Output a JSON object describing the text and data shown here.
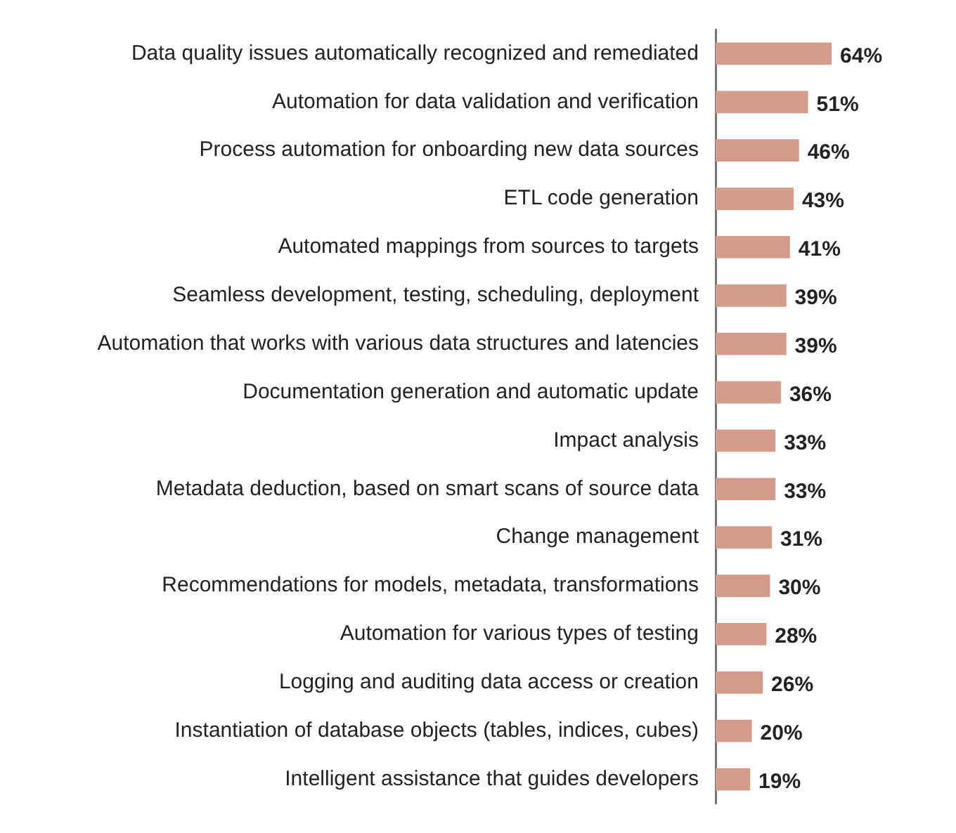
{
  "chart_data": {
    "type": "bar",
    "orientation": "horizontal",
    "categories": [
      "Data quality issues automatically recognized and remediated",
      "Automation for data validation and verification",
      "Process automation for onboarding new data sources",
      "ETL code generation",
      "Automated mappings from sources to targets",
      "Seamless development, testing, scheduling, deployment",
      "Automation that works with various data structures and latencies",
      "Documentation generation and automatic update",
      "Impact analysis",
      "Metadata deduction, based on smart scans of source data",
      "Change management",
      "Recommendations for models, metadata, transformations",
      "Automation for various types of testing",
      "Logging and auditing data access or creation",
      "Instantiation of database objects (tables, indices, cubes)",
      "Intelligent assistance that guides developers"
    ],
    "values": [
      64,
      51,
      46,
      43,
      41,
      39,
      39,
      36,
      33,
      33,
      31,
      30,
      28,
      26,
      20,
      19
    ],
    "value_labels": [
      "64%",
      "51%",
      "46%",
      "43%",
      "41%",
      "39%",
      "39%",
      "36%",
      "33%",
      "33%",
      "31%",
      "30%",
      "28%",
      "26%",
      "20%",
      "19%"
    ],
    "color": "#d49b8b",
    "legend": false,
    "tick_labels": "y"
  }
}
